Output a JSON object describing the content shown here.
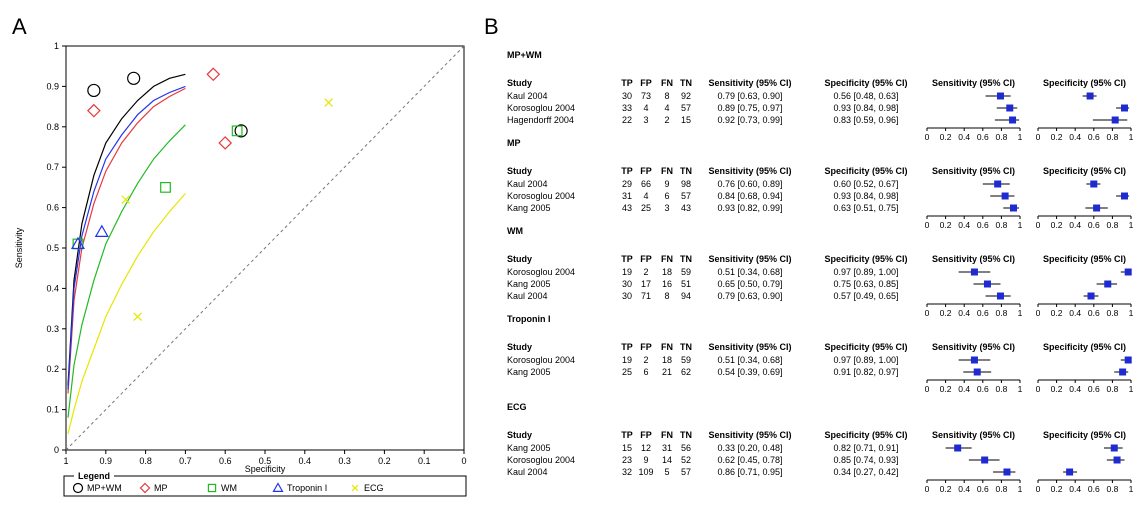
{
  "panels": {
    "a": "A",
    "b": "B"
  },
  "chart_data": [
    {
      "type": "scatter",
      "xlabel": "Specificity",
      "ylabel": "Sensitivity",
      "xlim": [
        1,
        0
      ],
      "ylim": [
        0,
        1
      ],
      "xticks": [
        "1",
        "0.9",
        "0.8",
        "0.7",
        "0.6",
        "0.5",
        "0.4",
        "0.3",
        "0.2",
        "0.1",
        "0"
      ],
      "yticks": [
        "0",
        "0.1",
        "0.2",
        "0.3",
        "0.4",
        "0.5",
        "0.6",
        "0.7",
        "0.8",
        "0.9",
        "1"
      ],
      "legend": {
        "title": "Legend",
        "placement": "bottom",
        "entries": [
          {
            "label": "MP+WM",
            "marker": "circle",
            "color": "#000000"
          },
          {
            "label": "MP",
            "marker": "diamond",
            "color": "#e8393b"
          },
          {
            "label": "WM",
            "marker": "square",
            "color": "#22bb22"
          },
          {
            "label": "Troponin I",
            "marker": "triangle",
            "color": "#2233ee"
          },
          {
            "label": "ECG",
            "marker": "x",
            "color": "#e6e600"
          }
        ]
      },
      "series": [
        {
          "name": "MP+WM",
          "color": "#000000",
          "marker": "circle",
          "points": [
            {
              "spec": 0.56,
              "sens": 0.79
            },
            {
              "spec": 0.93,
              "sens": 0.89
            },
            {
              "spec": 0.83,
              "sens": 0.92
            }
          ],
          "sroc": [
            [
              0.995,
              0.16
            ],
            [
              0.98,
              0.42
            ],
            [
              0.96,
              0.56
            ],
            [
              0.93,
              0.68
            ],
            [
              0.9,
              0.76
            ],
            [
              0.86,
              0.82
            ],
            [
              0.82,
              0.865
            ],
            [
              0.78,
              0.9
            ],
            [
              0.74,
              0.92
            ],
            [
              0.7,
              0.93
            ]
          ]
        },
        {
          "name": "MP",
          "color": "#e8393b",
          "marker": "diamond",
          "points": [
            {
              "spec": 0.6,
              "sens": 0.76
            },
            {
              "spec": 0.93,
              "sens": 0.84
            },
            {
              "spec": 0.63,
              "sens": 0.93
            }
          ],
          "sroc": [
            [
              0.995,
              0.14
            ],
            [
              0.98,
              0.37
            ],
            [
              0.96,
              0.5
            ],
            [
              0.93,
              0.61
            ],
            [
              0.9,
              0.69
            ],
            [
              0.86,
              0.76
            ],
            [
              0.82,
              0.81
            ],
            [
              0.78,
              0.85
            ],
            [
              0.74,
              0.875
            ],
            [
              0.7,
              0.895
            ]
          ]
        },
        {
          "name": "WM",
          "color": "#22bb22",
          "marker": "square",
          "points": [
            {
              "spec": 0.97,
              "sens": 0.51
            },
            {
              "spec": 0.75,
              "sens": 0.65
            },
            {
              "spec": 0.57,
              "sens": 0.79
            }
          ],
          "sroc": [
            [
              0.995,
              0.08
            ],
            [
              0.98,
              0.21
            ],
            [
              0.96,
              0.31
            ],
            [
              0.93,
              0.42
            ],
            [
              0.9,
              0.51
            ],
            [
              0.86,
              0.59
            ],
            [
              0.82,
              0.66
            ],
            [
              0.78,
              0.72
            ],
            [
              0.74,
              0.765
            ],
            [
              0.7,
              0.805
            ]
          ]
        },
        {
          "name": "Troponin I",
          "color": "#2233ee",
          "marker": "triangle",
          "points": [
            {
              "spec": 0.97,
              "sens": 0.51
            },
            {
              "spec": 0.91,
              "sens": 0.54
            }
          ],
          "sroc": [
            [
              0.995,
              0.15
            ],
            [
              0.98,
              0.4
            ],
            [
              0.96,
              0.53
            ],
            [
              0.93,
              0.64
            ],
            [
              0.9,
              0.72
            ],
            [
              0.86,
              0.78
            ],
            [
              0.82,
              0.83
            ],
            [
              0.78,
              0.865
            ],
            [
              0.74,
              0.885
            ],
            [
              0.7,
              0.9
            ]
          ]
        },
        {
          "name": "ECG",
          "color": "#e6e600",
          "marker": "x",
          "points": [
            {
              "spec": 0.82,
              "sens": 0.33
            },
            {
              "spec": 0.85,
              "sens": 0.62
            },
            {
              "spec": 0.34,
              "sens": 0.86
            }
          ],
          "sroc": [
            [
              0.995,
              0.04
            ],
            [
              0.98,
              0.1
            ],
            [
              0.96,
              0.17
            ],
            [
              0.93,
              0.25
            ],
            [
              0.9,
              0.33
            ],
            [
              0.86,
              0.41
            ],
            [
              0.82,
              0.48
            ],
            [
              0.78,
              0.54
            ],
            [
              0.74,
              0.59
            ],
            [
              0.7,
              0.635
            ]
          ]
        }
      ]
    },
    {
      "type": "table",
      "columns": [
        "Study",
        "TP",
        "FP",
        "FN",
        "TN",
        "Sensitivity (95% CI)",
        "Specificity (95% CI)",
        "Sensitivity (95% CI)",
        "Specificity (95% CI)"
      ],
      "axis_ticks": [
        "0",
        "0.2",
        "0.4",
        "0.6",
        "0.8",
        "1"
      ],
      "groups": [
        {
          "title": "MP+WM",
          "rows": [
            {
              "study": "Kaul 2004",
              "tp": "30",
              "fp": "73",
              "fn": "8",
              "tn": "92",
              "sens_text": "0.79 [0.63, 0.90]",
              "spec_text": "0.56 [0.48, 0.63]",
              "sens": [
                0.79,
                0.63,
                0.9
              ],
              "spec": [
                0.56,
                0.48,
                0.63
              ]
            },
            {
              "study": "Korosoglou 2004",
              "tp": "33",
              "fp": "4",
              "fn": "4",
              "tn": "57",
              "sens_text": "0.89 [0.75, 0.97]",
              "spec_text": "0.93 [0.84, 0.98]",
              "sens": [
                0.89,
                0.75,
                0.97
              ],
              "spec": [
                0.93,
                0.84,
                0.98
              ]
            },
            {
              "study": "Hagendorff 2004",
              "tp": "22",
              "fp": "3",
              "fn": "2",
              "tn": "15",
              "sens_text": "0.92 [0.73, 0.99]",
              "spec_text": "0.83 [0.59, 0.96]",
              "sens": [
                0.92,
                0.73,
                0.99
              ],
              "spec": [
                0.83,
                0.59,
                0.96
              ]
            }
          ]
        },
        {
          "title": "MP",
          "rows": [
            {
              "study": "Kaul 2004",
              "tp": "29",
              "fp": "66",
              "fn": "9",
              "tn": "98",
              "sens_text": "0.76 [0.60, 0.89]",
              "spec_text": "0.60 [0.52, 0.67]",
              "sens": [
                0.76,
                0.6,
                0.89
              ],
              "spec": [
                0.6,
                0.52,
                0.67
              ]
            },
            {
              "study": "Korosoglou 2004",
              "tp": "31",
              "fp": "4",
              "fn": "6",
              "tn": "57",
              "sens_text": "0.84 [0.68, 0.94]",
              "spec_text": "0.93 [0.84, 0.98]",
              "sens": [
                0.84,
                0.68,
                0.94
              ],
              "spec": [
                0.93,
                0.84,
                0.98
              ]
            },
            {
              "study": "Kang 2005",
              "tp": "43",
              "fp": "25",
              "fn": "3",
              "tn": "43",
              "sens_text": "0.93 [0.82, 0.99]",
              "spec_text": "0.63 [0.51, 0.75]",
              "sens": [
                0.93,
                0.82,
                0.99
              ],
              "spec": [
                0.63,
                0.51,
                0.75
              ]
            }
          ]
        },
        {
          "title": "WM",
          "rows": [
            {
              "study": "Korosoglou 2004",
              "tp": "19",
              "fp": "2",
              "fn": "18",
              "tn": "59",
              "sens_text": "0.51 [0.34, 0.68]",
              "spec_text": "0.97 [0.89, 1.00]",
              "sens": [
                0.51,
                0.34,
                0.68
              ],
              "spec": [
                0.97,
                0.89,
                1.0
              ]
            },
            {
              "study": "Kang 2005",
              "tp": "30",
              "fp": "17",
              "fn": "16",
              "tn": "51",
              "sens_text": "0.65 [0.50, 0.79]",
              "spec_text": "0.75 [0.63, 0.85]",
              "sens": [
                0.65,
                0.5,
                0.79
              ],
              "spec": [
                0.75,
                0.63,
                0.85
              ]
            },
            {
              "study": "Kaul 2004",
              "tp": "30",
              "fp": "71",
              "fn": "8",
              "tn": "94",
              "sens_text": "0.79 [0.63, 0.90]",
              "spec_text": "0.57 [0.49, 0.65]",
              "sens": [
                0.79,
                0.63,
                0.9
              ],
              "spec": [
                0.57,
                0.49,
                0.65
              ]
            }
          ]
        },
        {
          "title": "Troponin I",
          "rows": [
            {
              "study": "Korosoglou 2004",
              "tp": "19",
              "fp": "2",
              "fn": "18",
              "tn": "59",
              "sens_text": "0.51 [0.34, 0.68]",
              "spec_text": "0.97 [0.89, 1.00]",
              "sens": [
                0.51,
                0.34,
                0.68
              ],
              "spec": [
                0.97,
                0.89,
                1.0
              ]
            },
            {
              "study": "Kang 2005",
              "tp": "25",
              "fp": "6",
              "fn": "21",
              "tn": "62",
              "sens_text": "0.54 [0.39, 0.69]",
              "spec_text": "0.91 [0.82, 0.97]",
              "sens": [
                0.54,
                0.39,
                0.69
              ],
              "spec": [
                0.91,
                0.82,
                0.97
              ]
            }
          ]
        },
        {
          "title": "ECG",
          "rows": [
            {
              "study": "Kang 2005",
              "tp": "15",
              "fp": "12",
              "fn": "31",
              "tn": "56",
              "sens_text": "0.33 [0.20, 0.48]",
              "spec_text": "0.82 [0.71, 0.91]",
              "sens": [
                0.33,
                0.2,
                0.48
              ],
              "spec": [
                0.82,
                0.71,
                0.91
              ]
            },
            {
              "study": "Korosoglou 2004",
              "tp": "23",
              "fp": "9",
              "fn": "14",
              "tn": "52",
              "sens_text": "0.62 [0.45, 0.78]",
              "spec_text": "0.85 [0.74, 0.93]",
              "sens": [
                0.62,
                0.45,
                0.78
              ],
              "spec": [
                0.85,
                0.74,
                0.93
              ]
            },
            {
              "study": "Kaul 2004",
              "tp": "32",
              "fp": "109",
              "fn": "5",
              "tn": "57",
              "sens_text": "0.86 [0.71, 0.95]",
              "spec_text": "0.34 [0.27, 0.42]",
              "sens": [
                0.86,
                0.71,
                0.95
              ],
              "spec": [
                0.34,
                0.27,
                0.42
              ]
            }
          ]
        }
      ]
    }
  ]
}
